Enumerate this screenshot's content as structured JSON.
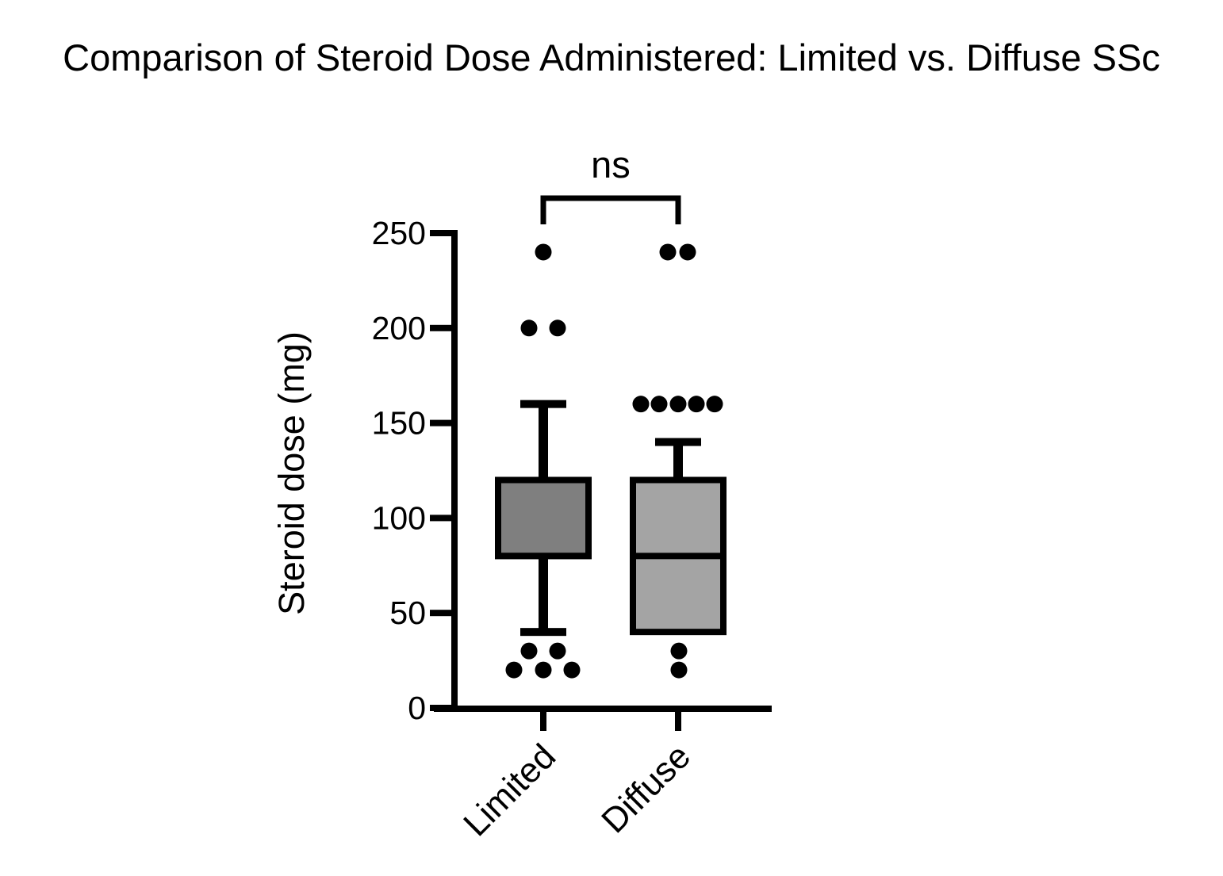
{
  "chart_data": {
    "type": "box",
    "title": "Comparison of Steroid Dose Administered: Limited vs. Diffuse SSc",
    "ylabel": "Steroid dose (mg)",
    "xlabel": "",
    "ylim": [
      0,
      250
    ],
    "yticks": [
      0,
      50,
      100,
      150,
      200,
      250
    ],
    "categories": [
      "Limited",
      "Diffuse"
    ],
    "grid": "off",
    "significance": {
      "label": "ns",
      "between": [
        "Limited",
        "Diffuse"
      ]
    },
    "colors": {
      "stroke": "#000000",
      "limited_fill": "#7f7f7f",
      "diffuse_fill": "#a4a4a4",
      "background": "#ffffff"
    },
    "groups": [
      {
        "label": "Limited",
        "fill_color": "#7f7f7f",
        "q1": 80,
        "median": 80,
        "q3": 120,
        "whisker_low": 40,
        "whisker_high": 160,
        "points": [
          {
            "value": 240,
            "dx": 0
          },
          {
            "value": 200,
            "dx": -18
          },
          {
            "value": 200,
            "dx": 18
          },
          {
            "value": 30,
            "dx": -18
          },
          {
            "value": 30,
            "dx": 18
          },
          {
            "value": 20,
            "dx": -37
          },
          {
            "value": 20,
            "dx": 0
          },
          {
            "value": 20,
            "dx": 36
          }
        ]
      },
      {
        "label": "Diffuse",
        "fill_color": "#a4a4a4",
        "q1": 40,
        "median": 80,
        "q3": 120,
        "whisker_low": null,
        "whisker_high": 140,
        "points": [
          {
            "value": 240,
            "dx": -13
          },
          {
            "value": 240,
            "dx": 12
          },
          {
            "value": 160,
            "dx": -47
          },
          {
            "value": 160,
            "dx": -24
          },
          {
            "value": 160,
            "dx": 0
          },
          {
            "value": 160,
            "dx": 23
          },
          {
            "value": 160,
            "dx": 46
          },
          {
            "value": 30,
            "dx": 1
          },
          {
            "value": 20,
            "dx": 1
          }
        ]
      }
    ]
  }
}
